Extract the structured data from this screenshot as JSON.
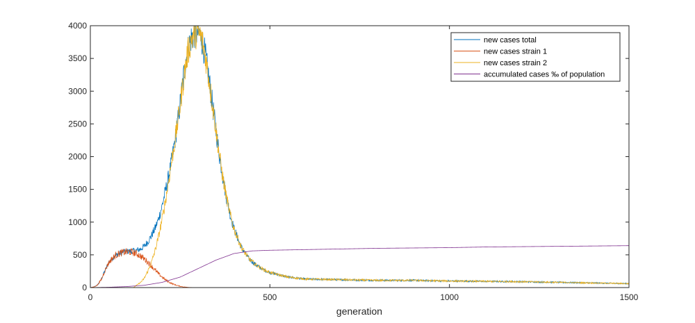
{
  "chart_data": {
    "type": "line",
    "title": "",
    "xlabel": "generation",
    "ylabel": "",
    "xlim": [
      0,
      1500
    ],
    "ylim": [
      0,
      4000
    ],
    "xticks": [
      0,
      500,
      1000,
      1500
    ],
    "yticks": [
      0,
      500,
      1000,
      1500,
      2000,
      2500,
      3000,
      3500,
      4000
    ],
    "grid": false,
    "legend_position": "top-right",
    "series": [
      {
        "name": "new cases total",
        "color": "#0072BD",
        "noise": 0.05,
        "points": [
          [
            0,
            0
          ],
          [
            10,
            10
          ],
          [
            20,
            40
          ],
          [
            30,
            120
          ],
          [
            40,
            250
          ],
          [
            50,
            370
          ],
          [
            60,
            440
          ],
          [
            70,
            490
          ],
          [
            80,
            520
          ],
          [
            90,
            540
          ],
          [
            100,
            550
          ],
          [
            110,
            555
          ],
          [
            120,
            560
          ],
          [
            130,
            570
          ],
          [
            140,
            590
          ],
          [
            150,
            630
          ],
          [
            160,
            700
          ],
          [
            170,
            790
          ],
          [
            180,
            900
          ],
          [
            190,
            1050
          ],
          [
            200,
            1250
          ],
          [
            210,
            1500
          ],
          [
            220,
            1750
          ],
          [
            230,
            2050
          ],
          [
            240,
            2400
          ],
          [
            250,
            2800
          ],
          [
            260,
            3250
          ],
          [
            270,
            3600
          ],
          [
            280,
            3800
          ],
          [
            290,
            3880
          ],
          [
            300,
            3900
          ],
          [
            310,
            3800
          ],
          [
            320,
            3550
          ],
          [
            330,
            3200
          ],
          [
            340,
            2800
          ],
          [
            350,
            2400
          ],
          [
            360,
            2000
          ],
          [
            370,
            1650
          ],
          [
            380,
            1350
          ],
          [
            390,
            1100
          ],
          [
            400,
            900
          ],
          [
            420,
            620
          ],
          [
            440,
            450
          ],
          [
            460,
            350
          ],
          [
            480,
            280
          ],
          [
            500,
            230
          ],
          [
            550,
            160
          ],
          [
            600,
            130
          ],
          [
            700,
            120
          ],
          [
            800,
            110
          ],
          [
            900,
            110
          ],
          [
            1000,
            100
          ],
          [
            1100,
            95
          ],
          [
            1200,
            90
          ],
          [
            1300,
            80
          ],
          [
            1400,
            70
          ],
          [
            1500,
            60
          ]
        ]
      },
      {
        "name": "new cases strain 1",
        "color": "#D95319",
        "noise": 0.07,
        "points": [
          [
            0,
            0
          ],
          [
            10,
            10
          ],
          [
            20,
            40
          ],
          [
            30,
            120
          ],
          [
            40,
            250
          ],
          [
            50,
            370
          ],
          [
            60,
            440
          ],
          [
            70,
            490
          ],
          [
            80,
            520
          ],
          [
            90,
            535
          ],
          [
            100,
            545
          ],
          [
            110,
            545
          ],
          [
            120,
            535
          ],
          [
            130,
            515
          ],
          [
            140,
            480
          ],
          [
            150,
            440
          ],
          [
            160,
            390
          ],
          [
            170,
            330
          ],
          [
            180,
            270
          ],
          [
            190,
            210
          ],
          [
            200,
            160
          ],
          [
            210,
            115
          ],
          [
            220,
            80
          ],
          [
            230,
            55
          ],
          [
            240,
            35
          ],
          [
            250,
            20
          ],
          [
            260,
            10
          ],
          [
            270,
            5
          ],
          [
            280,
            2
          ],
          [
            290,
            0
          ],
          [
            1500,
            0
          ]
        ]
      },
      {
        "name": "new cases strain 2",
        "color": "#EDB120",
        "noise": 0.05,
        "points": [
          [
            0,
            0
          ],
          [
            120,
            0
          ],
          [
            130,
            40
          ],
          [
            140,
            80
          ],
          [
            150,
            140
          ],
          [
            160,
            250
          ],
          [
            170,
            380
          ],
          [
            180,
            560
          ],
          [
            190,
            780
          ],
          [
            200,
            1050
          ],
          [
            210,
            1350
          ],
          [
            220,
            1700
          ],
          [
            230,
            2050
          ],
          [
            240,
            2400
          ],
          [
            250,
            2780
          ],
          [
            260,
            3200
          ],
          [
            270,
            3550
          ],
          [
            280,
            3780
          ],
          [
            290,
            3870
          ],
          [
            300,
            3900
          ],
          [
            310,
            3800
          ],
          [
            320,
            3550
          ],
          [
            330,
            3200
          ],
          [
            340,
            2800
          ],
          [
            350,
            2400
          ],
          [
            360,
            2000
          ],
          [
            370,
            1650
          ],
          [
            380,
            1350
          ],
          [
            390,
            1100
          ],
          [
            400,
            900
          ],
          [
            420,
            620
          ],
          [
            440,
            450
          ],
          [
            460,
            350
          ],
          [
            480,
            280
          ],
          [
            500,
            230
          ],
          [
            550,
            160
          ],
          [
            600,
            130
          ],
          [
            700,
            120
          ],
          [
            800,
            110
          ],
          [
            900,
            110
          ],
          [
            1000,
            100
          ],
          [
            1100,
            95
          ],
          [
            1200,
            90
          ],
          [
            1300,
            80
          ],
          [
            1400,
            70
          ],
          [
            1500,
            60
          ]
        ]
      },
      {
        "name": "accumulated cases ‰ of population",
        "color": "#7E2F8E",
        "noise": 0,
        "points": [
          [
            0,
            0
          ],
          [
            50,
            5
          ],
          [
            100,
            15
          ],
          [
            150,
            35
          ],
          [
            200,
            80
          ],
          [
            250,
            160
          ],
          [
            300,
            290
          ],
          [
            350,
            420
          ],
          [
            400,
            520
          ],
          [
            450,
            560
          ],
          [
            500,
            570
          ],
          [
            600,
            580
          ],
          [
            700,
            590
          ],
          [
            800,
            600
          ],
          [
            900,
            605
          ],
          [
            1000,
            610
          ],
          [
            1100,
            620
          ],
          [
            1200,
            625
          ],
          [
            1300,
            630
          ],
          [
            1400,
            635
          ],
          [
            1500,
            640
          ]
        ]
      }
    ]
  }
}
